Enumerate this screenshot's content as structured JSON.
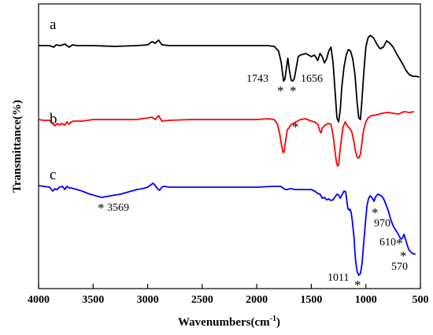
{
  "chart_data": {
    "type": "line",
    "xlabel": "Wavenumbers(cm",
    "xlabel_sup": "-1",
    "xlabel_close": ")",
    "ylabel": "Transmittance(%)",
    "xlim": [
      4000,
      500
    ],
    "x_reversed": true,
    "x_ticks": [
      4000,
      3500,
      3000,
      2500,
      2000,
      1500,
      1000,
      500
    ],
    "x_tick_labels": [
      "4000",
      "3500",
      "3000",
      "2500",
      "2000",
      "1500",
      "1000",
      "500"
    ],
    "y_ticks_shown": false,
    "grid": false,
    "series": [
      {
        "name": "a",
        "color": "#000000",
        "points": [
          [
            4000,
            58
          ],
          [
            3900,
            58
          ],
          [
            3860,
            60
          ],
          [
            3840,
            57
          ],
          [
            3800,
            58
          ],
          [
            3760,
            56
          ],
          [
            3720,
            60
          ],
          [
            3690,
            57
          ],
          [
            3650,
            58
          ],
          [
            3500,
            58
          ],
          [
            3300,
            59
          ],
          [
            3100,
            58
          ],
          [
            3000,
            57
          ],
          [
            2960,
            53
          ],
          [
            2930,
            55
          ],
          [
            2900,
            51
          ],
          [
            2870,
            57
          ],
          [
            2800,
            58
          ],
          [
            2500,
            58
          ],
          [
            2200,
            58
          ],
          [
            1900,
            58
          ],
          [
            1840,
            59
          ],
          [
            1800,
            65
          ],
          [
            1775,
            80
          ],
          [
            1755,
            103
          ],
          [
            1743,
            101
          ],
          [
            1730,
            88
          ],
          [
            1715,
            74
          ],
          [
            1700,
            90
          ],
          [
            1685,
            102
          ],
          [
            1670,
            103
          ],
          [
            1656,
            100
          ],
          [
            1640,
            88
          ],
          [
            1620,
            72
          ],
          [
            1600,
            70
          ],
          [
            1550,
            68
          ],
          [
            1500,
            72
          ],
          [
            1470,
            70
          ],
          [
            1440,
            77
          ],
          [
            1420,
            68
          ],
          [
            1400,
            72
          ],
          [
            1380,
            80
          ],
          [
            1360,
            75
          ],
          [
            1340,
            65
          ],
          [
            1320,
            60
          ],
          [
            1300,
            80
          ],
          [
            1280,
            120
          ],
          [
            1265,
            150
          ],
          [
            1250,
            155
          ],
          [
            1235,
            140
          ],
          [
            1220,
            110
          ],
          [
            1200,
            85
          ],
          [
            1180,
            70
          ],
          [
            1160,
            63
          ],
          [
            1140,
            65
          ],
          [
            1120,
            75
          ],
          [
            1100,
            95
          ],
          [
            1080,
            130
          ],
          [
            1065,
            150
          ],
          [
            1050,
            152
          ],
          [
            1040,
            135
          ],
          [
            1020,
            95
          ],
          [
            1000,
            60
          ],
          [
            980,
            48
          ],
          [
            960,
            45
          ],
          [
            930,
            48
          ],
          [
            900,
            56
          ],
          [
            870,
            62
          ],
          [
            840,
            60
          ],
          [
            810,
            52
          ],
          [
            780,
            55
          ],
          [
            750,
            60
          ],
          [
            720,
            68
          ],
          [
            690,
            75
          ],
          [
            660,
            82
          ],
          [
            630,
            90
          ],
          [
            600,
            95
          ],
          [
            570,
            97
          ],
          [
            540,
            97
          ],
          [
            510,
            98
          ]
        ]
      },
      {
        "name": "b",
        "color": "#ff0000",
        "points": [
          [
            4000,
            152
          ],
          [
            3950,
            153
          ],
          [
            3900,
            153
          ],
          [
            3870,
            157
          ],
          [
            3850,
            160
          ],
          [
            3830,
            157
          ],
          [
            3810,
            159
          ],
          [
            3790,
            157
          ],
          [
            3760,
            159
          ],
          [
            3740,
            155
          ],
          [
            3720,
            158
          ],
          [
            3700,
            155
          ],
          [
            3680,
            154
          ],
          [
            3600,
            154
          ],
          [
            3500,
            152
          ],
          [
            3300,
            152
          ],
          [
            3100,
            152
          ],
          [
            3000,
            150
          ],
          [
            2960,
            149
          ],
          [
            2930,
            152
          ],
          [
            2900,
            147
          ],
          [
            2870,
            154
          ],
          [
            2800,
            153
          ],
          [
            2600,
            152
          ],
          [
            2400,
            152
          ],
          [
            2200,
            152
          ],
          [
            2000,
            152
          ],
          [
            1900,
            151
          ],
          [
            1840,
            152
          ],
          [
            1810,
            158
          ],
          [
            1790,
            170
          ],
          [
            1775,
            183
          ],
          [
            1760,
            194
          ],
          [
            1750,
            193
          ],
          [
            1735,
            178
          ],
          [
            1720,
            165
          ],
          [
            1700,
            162
          ],
          [
            1690,
            159
          ],
          [
            1665,
            157
          ],
          [
            1640,
            155
          ],
          [
            1600,
            152
          ],
          [
            1550,
            151
          ],
          [
            1500,
            154
          ],
          [
            1470,
            155
          ],
          [
            1440,
            158
          ],
          [
            1420,
            167
          ],
          [
            1410,
            169
          ],
          [
            1400,
            163
          ],
          [
            1380,
            160
          ],
          [
            1360,
            158
          ],
          [
            1340,
            157
          ],
          [
            1320,
            158
          ],
          [
            1300,
            172
          ],
          [
            1285,
            190
          ],
          [
            1270,
            206
          ],
          [
            1260,
            211
          ],
          [
            1250,
            210
          ],
          [
            1240,
            195
          ],
          [
            1225,
            178
          ],
          [
            1210,
            162
          ],
          [
            1190,
            155
          ],
          [
            1170,
            160
          ],
          [
            1150,
            163
          ],
          [
            1130,
            167
          ],
          [
            1110,
            180
          ],
          [
            1095,
            192
          ],
          [
            1080,
            200
          ],
          [
            1065,
            201
          ],
          [
            1050,
            196
          ],
          [
            1035,
            180
          ],
          [
            1020,
            165
          ],
          [
            1000,
            155
          ],
          [
            980,
            150
          ],
          [
            950,
            147
          ],
          [
            900,
            146
          ],
          [
            850,
            144
          ],
          [
            800,
            143
          ],
          [
            750,
            144
          ],
          [
            700,
            145
          ],
          [
            650,
            142
          ],
          [
            600,
            143
          ],
          [
            560,
            142
          ]
        ]
      },
      {
        "name": "c",
        "color": "#0000ff",
        "points": [
          [
            4000,
            236
          ],
          [
            3950,
            237
          ],
          [
            3900,
            238
          ],
          [
            3870,
            243
          ],
          [
            3850,
            240
          ],
          [
            3830,
            241
          ],
          [
            3810,
            238
          ],
          [
            3780,
            237
          ],
          [
            3760,
            241
          ],
          [
            3740,
            237
          ],
          [
            3720,
            239
          ],
          [
            3700,
            239
          ],
          [
            3650,
            241
          ],
          [
            3600,
            243
          ],
          [
            3550,
            246
          ],
          [
            3500,
            248
          ],
          [
            3450,
            250
          ],
          [
            3420,
            251
          ],
          [
            3380,
            250
          ],
          [
            3340,
            249
          ],
          [
            3300,
            248
          ],
          [
            3250,
            247
          ],
          [
            3200,
            245
          ],
          [
            3150,
            243
          ],
          [
            3100,
            241
          ],
          [
            3050,
            240
          ],
          [
            3000,
            238
          ],
          [
            2970,
            235
          ],
          [
            2950,
            233
          ],
          [
            2930,
            236
          ],
          [
            2910,
            240
          ],
          [
            2890,
            242
          ],
          [
            2870,
            238
          ],
          [
            2850,
            237
          ],
          [
            2800,
            238
          ],
          [
            2600,
            238
          ],
          [
            2400,
            238
          ],
          [
            2200,
            238
          ],
          [
            2000,
            238
          ],
          [
            1850,
            237
          ],
          [
            1800,
            237
          ],
          [
            1780,
            237
          ],
          [
            1760,
            239
          ],
          [
            1740,
            241
          ],
          [
            1720,
            241
          ],
          [
            1700,
            240
          ],
          [
            1680,
            240
          ],
          [
            1650,
            241
          ],
          [
            1600,
            241
          ],
          [
            1550,
            241
          ],
          [
            1500,
            241
          ],
          [
            1470,
            243
          ],
          [
            1440,
            246
          ],
          [
            1420,
            247
          ],
          [
            1400,
            252
          ],
          [
            1380,
            251
          ],
          [
            1360,
            254
          ],
          [
            1340,
            253
          ],
          [
            1320,
            255
          ],
          [
            1300,
            254
          ],
          [
            1280,
            250
          ],
          [
            1265,
            247
          ],
          [
            1250,
            248
          ],
          [
            1235,
            252
          ],
          [
            1220,
            248
          ],
          [
            1200,
            243
          ],
          [
            1185,
            244
          ],
          [
            1175,
            255
          ],
          [
            1165,
            265
          ],
          [
            1155,
            267
          ],
          [
            1145,
            266
          ],
          [
            1135,
            270
          ],
          [
            1125,
            280
          ],
          [
            1110,
            300
          ],
          [
            1095,
            330
          ],
          [
            1080,
            345
          ],
          [
            1065,
            350
          ],
          [
            1050,
            348
          ],
          [
            1035,
            335
          ],
          [
            1020,
            310
          ],
          [
            1005,
            285
          ],
          [
            990,
            262
          ],
          [
            975,
            252
          ],
          [
            960,
            249
          ],
          [
            940,
            252
          ],
          [
            925,
            256
          ],
          [
            910,
            250
          ],
          [
            890,
            247
          ],
          [
            870,
            248
          ],
          [
            850,
            250
          ],
          [
            830,
            255
          ],
          [
            810,
            262
          ],
          [
            790,
            270
          ],
          [
            770,
            280
          ],
          [
            750,
            287
          ],
          [
            730,
            292
          ],
          [
            710,
            296
          ],
          [
            695,
            300
          ],
          [
            680,
            304
          ],
          [
            665,
            303
          ],
          [
            650,
            298
          ],
          [
            635,
            305
          ],
          [
            620,
            312
          ],
          [
            605,
            318
          ],
          [
            590,
            320
          ],
          [
            575,
            322
          ],
          [
            560,
            323
          ],
          [
            545,
            323
          ]
        ]
      }
    ],
    "annotations": [
      {
        "text": "1743",
        "kind": "label"
      },
      {
        "text": "1656",
        "kind": "label"
      },
      {
        "text": "3569",
        "kind": "label"
      },
      {
        "text": "970",
        "kind": "label"
      },
      {
        "text": "610",
        "kind": "label"
      },
      {
        "text": "570",
        "kind": "label"
      },
      {
        "text": "1011",
        "kind": "label"
      },
      {
        "text": "*",
        "kind": "marker"
      }
    ]
  }
}
